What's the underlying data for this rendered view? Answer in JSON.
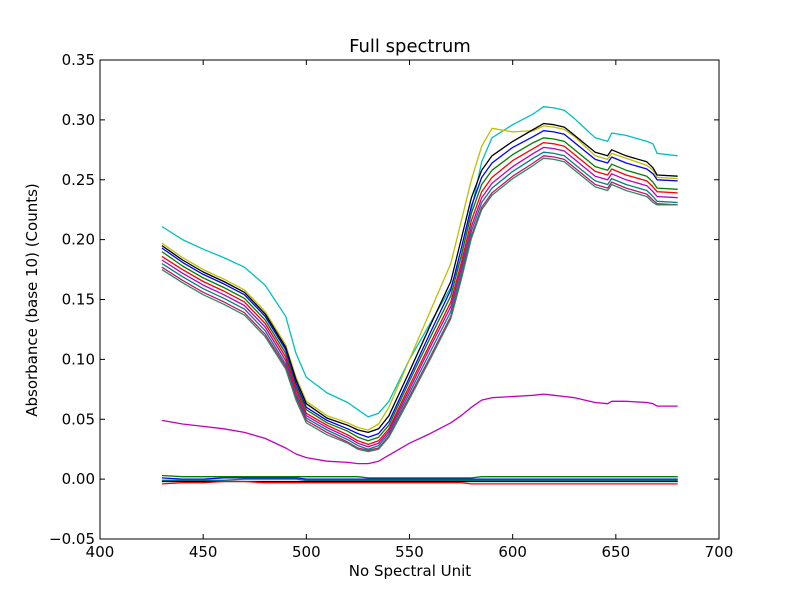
{
  "chart_data": {
    "type": "line",
    "title": "Full spectrum",
    "xlabel": "No Spectral Unit",
    "ylabel": "Absorbance (base 10) (Counts)",
    "xlim": [
      400,
      700
    ],
    "ylim": [
      -0.05,
      0.35
    ],
    "grid": false,
    "xticks": [
      400,
      450,
      500,
      550,
      600,
      650,
      700
    ],
    "xtick_labels": [
      "400",
      "450",
      "500",
      "550",
      "600",
      "650",
      "700"
    ],
    "yticks": [
      -0.05,
      0.0,
      0.05,
      0.1,
      0.15,
      0.2,
      0.25,
      0.3,
      0.35
    ],
    "ytick_labels": [
      "−0.05",
      "0.00",
      "0.05",
      "0.10",
      "0.15",
      "0.20",
      "0.25",
      "0.30",
      "0.35"
    ],
    "x": [
      430,
      440,
      450,
      460,
      470,
      480,
      490,
      495,
      500,
      510,
      520,
      525,
      530,
      535,
      540,
      550,
      560,
      570,
      575,
      580,
      585,
      590,
      600,
      610,
      615,
      620,
      625,
      630,
      640,
      646,
      648,
      655,
      665,
      668,
      670,
      680
    ],
    "series": [
      {
        "color": "#00bfbf",
        "values": [
          0.211,
          0.2,
          0.192,
          0.185,
          0.177,
          0.162,
          0.136,
          0.105,
          0.085,
          0.072,
          0.064,
          0.058,
          0.052,
          0.055,
          0.065,
          0.1,
          0.13,
          0.16,
          0.185,
          0.225,
          0.265,
          0.285,
          0.296,
          0.305,
          0.311,
          0.31,
          0.308,
          0.301,
          0.285,
          0.282,
          0.289,
          0.287,
          0.282,
          0.28,
          0.272,
          0.27
        ]
      },
      {
        "color": "#bfbf00",
        "values": [
          0.197,
          0.185,
          0.175,
          0.167,
          0.158,
          0.14,
          0.112,
          0.085,
          0.065,
          0.053,
          0.047,
          0.043,
          0.041,
          0.046,
          0.06,
          0.1,
          0.14,
          0.18,
          0.215,
          0.25,
          0.278,
          0.293,
          0.29,
          0.291,
          0.295,
          0.294,
          0.292,
          0.286,
          0.27,
          0.267,
          0.272,
          0.268,
          0.262,
          0.258,
          0.252,
          0.251
        ]
      },
      {
        "color": "#000000",
        "values": [
          0.195,
          0.183,
          0.173,
          0.165,
          0.156,
          0.138,
          0.11,
          0.083,
          0.063,
          0.051,
          0.045,
          0.041,
          0.039,
          0.042,
          0.053,
          0.09,
          0.128,
          0.165,
          0.2,
          0.235,
          0.258,
          0.27,
          0.282,
          0.292,
          0.297,
          0.296,
          0.294,
          0.287,
          0.273,
          0.27,
          0.275,
          0.27,
          0.265,
          0.26,
          0.254,
          0.253
        ]
      },
      {
        "color": "#0000ff",
        "values": [
          0.193,
          0.181,
          0.171,
          0.163,
          0.154,
          0.136,
          0.108,
          0.08,
          0.06,
          0.049,
          0.042,
          0.038,
          0.035,
          0.038,
          0.048,
          0.085,
          0.122,
          0.158,
          0.192,
          0.228,
          0.252,
          0.264,
          0.277,
          0.286,
          0.291,
          0.29,
          0.288,
          0.281,
          0.267,
          0.264,
          0.269,
          0.264,
          0.259,
          0.255,
          0.25,
          0.249
        ]
      },
      {
        "color": "#008000",
        "values": [
          0.19,
          0.178,
          0.168,
          0.16,
          0.151,
          0.133,
          0.105,
          0.077,
          0.058,
          0.047,
          0.04,
          0.035,
          0.032,
          0.035,
          0.045,
          0.082,
          0.118,
          0.153,
          0.186,
          0.222,
          0.246,
          0.258,
          0.271,
          0.281,
          0.285,
          0.284,
          0.282,
          0.275,
          0.261,
          0.258,
          0.263,
          0.258,
          0.253,
          0.248,
          0.243,
          0.242
        ]
      },
      {
        "color": "#ff0000",
        "values": [
          0.186,
          0.175,
          0.165,
          0.157,
          0.148,
          0.13,
          0.102,
          0.075,
          0.055,
          0.045,
          0.037,
          0.032,
          0.029,
          0.032,
          0.042,
          0.078,
          0.113,
          0.148,
          0.18,
          0.216,
          0.24,
          0.252,
          0.266,
          0.276,
          0.281,
          0.28,
          0.278,
          0.271,
          0.257,
          0.254,
          0.259,
          0.254,
          0.249,
          0.244,
          0.24,
          0.239
        ]
      },
      {
        "color": "#bf00bf",
        "values": [
          0.183,
          0.172,
          0.162,
          0.154,
          0.145,
          0.127,
          0.099,
          0.072,
          0.053,
          0.043,
          0.035,
          0.03,
          0.027,
          0.03,
          0.04,
          0.075,
          0.11,
          0.144,
          0.176,
          0.211,
          0.235,
          0.247,
          0.261,
          0.272,
          0.277,
          0.276,
          0.274,
          0.267,
          0.253,
          0.25,
          0.255,
          0.25,
          0.245,
          0.24,
          0.236,
          0.235
        ]
      },
      {
        "color": "#008080",
        "values": [
          0.18,
          0.169,
          0.159,
          0.151,
          0.142,
          0.124,
          0.096,
          0.07,
          0.051,
          0.041,
          0.033,
          0.028,
          0.025,
          0.028,
          0.038,
          0.072,
          0.106,
          0.14,
          0.172,
          0.207,
          0.231,
          0.243,
          0.257,
          0.268,
          0.273,
          0.272,
          0.27,
          0.263,
          0.249,
          0.246,
          0.251,
          0.246,
          0.241,
          0.236,
          0.232,
          0.231
        ]
      },
      {
        "color": "#c0147a",
        "values": [
          0.177,
          0.166,
          0.156,
          0.148,
          0.139,
          0.121,
          0.094,
          0.068,
          0.049,
          0.039,
          0.031,
          0.026,
          0.024,
          0.026,
          0.036,
          0.069,
          0.102,
          0.136,
          0.168,
          0.203,
          0.227,
          0.239,
          0.253,
          0.264,
          0.27,
          0.269,
          0.267,
          0.26,
          0.246,
          0.243,
          0.248,
          0.243,
          0.238,
          0.233,
          0.23,
          0.229
        ]
      },
      {
        "color": "#2e8b57",
        "values": [
          0.175,
          0.164,
          0.154,
          0.146,
          0.137,
          0.119,
          0.092,
          0.066,
          0.047,
          0.037,
          0.03,
          0.025,
          0.023,
          0.025,
          0.035,
          0.067,
          0.1,
          0.134,
          0.166,
          0.201,
          0.225,
          0.237,
          0.251,
          0.262,
          0.268,
          0.267,
          0.265,
          0.258,
          0.244,
          0.241,
          0.246,
          0.241,
          0.236,
          0.231,
          0.229,
          0.229
        ]
      },
      {
        "color": "#bf00bf",
        "values": [
          0.049,
          0.046,
          0.044,
          0.042,
          0.039,
          0.034,
          0.026,
          0.021,
          0.018,
          0.015,
          0.014,
          0.013,
          0.013,
          0.015,
          0.02,
          0.03,
          0.038,
          0.047,
          0.053,
          0.06,
          0.066,
          0.068,
          0.069,
          0.07,
          0.071,
          0.07,
          0.069,
          0.068,
          0.064,
          0.063,
          0.065,
          0.065,
          0.064,
          0.063,
          0.061,
          0.061
        ]
      },
      {
        "color": "#008000",
        "values": [
          0.003,
          0.002,
          0.002,
          0.002,
          0.002,
          0.002,
          0.002,
          0.002,
          0.002,
          0.002,
          0.002,
          0.002,
          0.001,
          0.001,
          0.001,
          0.001,
          0.001,
          0.001,
          0.001,
          0.001,
          0.002,
          0.002,
          0.002,
          0.002,
          0.002,
          0.002,
          0.002,
          0.002,
          0.002,
          0.002,
          0.002,
          0.002,
          0.002,
          0.002,
          0.002,
          0.002
        ]
      },
      {
        "color": "#0000ff",
        "values": [
          0.001,
          0.0,
          0.0,
          0.001,
          0.001,
          0.001,
          0.001,
          0.001,
          0.0,
          0.0,
          0.0,
          0.0,
          0.0,
          0.0,
          0.0,
          0.0,
          0.0,
          0.0,
          0.0,
          0.0,
          0.0,
          0.0,
          0.0,
          0.0,
          0.0,
          0.0,
          0.0,
          0.0,
          0.0,
          0.0,
          0.0,
          0.0,
          0.0,
          0.0,
          0.0,
          0.0
        ]
      },
      {
        "color": "#008080",
        "values": [
          -0.001,
          -0.001,
          -0.001,
          -0.001,
          0.0,
          0.0,
          0.0,
          0.0,
          -0.001,
          -0.001,
          -0.001,
          -0.001,
          -0.001,
          -0.001,
          -0.001,
          -0.001,
          -0.001,
          -0.001,
          -0.001,
          -0.001,
          -0.001,
          -0.001,
          -0.001,
          -0.001,
          -0.001,
          -0.001,
          -0.001,
          -0.001,
          -0.001,
          -0.001,
          -0.001,
          -0.001,
          -0.001,
          -0.001,
          -0.001,
          -0.001
        ]
      },
      {
        "color": "#000000",
        "values": [
          -0.002,
          -0.002,
          -0.002,
          -0.002,
          -0.002,
          -0.002,
          -0.002,
          -0.002,
          -0.002,
          -0.002,
          -0.002,
          -0.002,
          -0.002,
          -0.002,
          -0.002,
          -0.002,
          -0.002,
          -0.002,
          -0.002,
          -0.002,
          -0.002,
          -0.002,
          -0.002,
          -0.002,
          -0.002,
          -0.002,
          -0.002,
          -0.002,
          -0.002,
          -0.002,
          -0.002,
          -0.002,
          -0.002,
          -0.002,
          -0.002,
          -0.002
        ]
      },
      {
        "color": "#ff0000",
        "values": [
          -0.004,
          -0.003,
          -0.003,
          -0.002,
          -0.002,
          -0.003,
          -0.003,
          -0.003,
          -0.003,
          -0.003,
          -0.003,
          -0.003,
          -0.003,
          -0.003,
          -0.003,
          -0.003,
          -0.003,
          -0.003,
          -0.003,
          -0.004,
          -0.004,
          -0.004,
          -0.004,
          -0.004,
          -0.004,
          -0.004,
          -0.004,
          -0.004,
          -0.004,
          -0.004,
          -0.004,
          -0.004,
          -0.004,
          -0.004,
          -0.004,
          -0.004
        ]
      }
    ]
  }
}
